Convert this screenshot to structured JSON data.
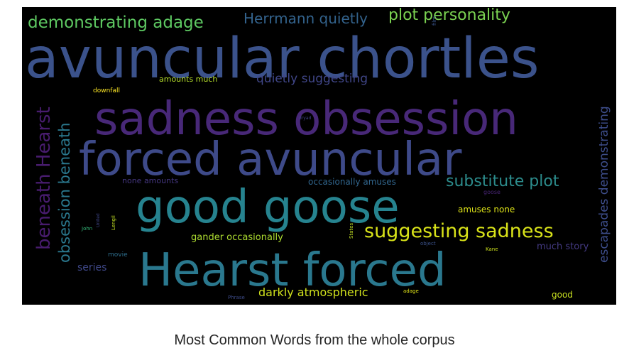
{
  "caption": "Most Common Words from the whole corpus",
  "chart_data": {
    "type": "wordcloud",
    "title": "Most Common Words from the whole corpus",
    "background": "#000000",
    "colormap": "viridis",
    "words": [
      {
        "text": "avuncular chortles",
        "color": "#3b528b",
        "orientation": "horizontal"
      },
      {
        "text": "sadness obsession",
        "color": "#482878",
        "orientation": "horizontal"
      },
      {
        "text": "forced avuncular",
        "color": "#3e4a89",
        "orientation": "horizontal"
      },
      {
        "text": "good goose",
        "color": "#26838f",
        "orientation": "horizontal"
      },
      {
        "text": "Hearst forced",
        "color": "#2a788e",
        "orientation": "horizontal"
      },
      {
        "text": "suggesting sadness",
        "color": "#d8e219",
        "orientation": "horizontal"
      },
      {
        "text": "demonstrating adage",
        "color": "#5ec962",
        "orientation": "horizontal"
      },
      {
        "text": "Herrmann quietly",
        "color": "#33638d",
        "orientation": "horizontal"
      },
      {
        "text": "plot personality",
        "color": "#7ad151",
        "orientation": "horizontal"
      },
      {
        "text": "substitute plot",
        "color": "#2c8c8c",
        "orientation": "horizontal"
      },
      {
        "text": "beneath Hearst",
        "color": "#481c6e",
        "orientation": "vertical"
      },
      {
        "text": "obsession beneath",
        "color": "#2a788e",
        "orientation": "vertical"
      },
      {
        "text": "escapades demonstrating",
        "color": "#3d4d8a",
        "orientation": "vertical"
      },
      {
        "text": "quietly suggesting",
        "color": "#404688",
        "orientation": "horizontal"
      },
      {
        "text": "darkly atmospheric",
        "color": "#d0e11c",
        "orientation": "horizontal"
      },
      {
        "text": "occasionally amuses",
        "color": "#31668e",
        "orientation": "horizontal"
      },
      {
        "text": "gander occasionally",
        "color": "#addc30",
        "orientation": "horizontal"
      },
      {
        "text": "amuses none",
        "color": "#dde318",
        "orientation": "horizontal"
      },
      {
        "text": "much story",
        "color": "#443a83",
        "orientation": "horizontal"
      },
      {
        "text": "series",
        "color": "#3f4889",
        "orientation": "horizontal"
      },
      {
        "text": "amounts much",
        "color": "#b5de2b",
        "orientation": "horizontal"
      },
      {
        "text": "none amounts",
        "color": "#453781",
        "orientation": "horizontal"
      },
      {
        "text": "downfall",
        "color": "#fde725",
        "orientation": "horizontal"
      },
      {
        "text": "good",
        "color": "#c8e020",
        "orientation": "horizontal"
      },
      {
        "text": "movie",
        "color": "#2e6f8e",
        "orientation": "horizontal"
      },
      {
        "text": "goose",
        "color": "#482576",
        "orientation": "horizontal"
      },
      {
        "text": "object",
        "color": "#3b528b",
        "orientation": "horizontal"
      },
      {
        "text": "Kane",
        "color": "#cde11d",
        "orientation": "horizontal"
      },
      {
        "text": "adage",
        "color": "#dfe318",
        "orientation": "horizontal"
      },
      {
        "text": "Phrase",
        "color": "#3e4c8a",
        "orientation": "horizontal"
      },
      {
        "text": "dryad",
        "color": "#414487",
        "orientation": "horizontal"
      },
      {
        "text": "John",
        "color": "#35b779",
        "orientation": "horizontal"
      },
      {
        "text": "Lengil",
        "color": "#c2df23",
        "orientation": "vertical"
      },
      {
        "text": "United",
        "color": "#3f4788",
        "orientation": "vertical"
      },
      {
        "text": "States",
        "color": "#c0df25",
        "orientation": "vertical"
      },
      {
        "text": "film",
        "color": "#3a548c",
        "orientation": "vertical"
      }
    ]
  }
}
